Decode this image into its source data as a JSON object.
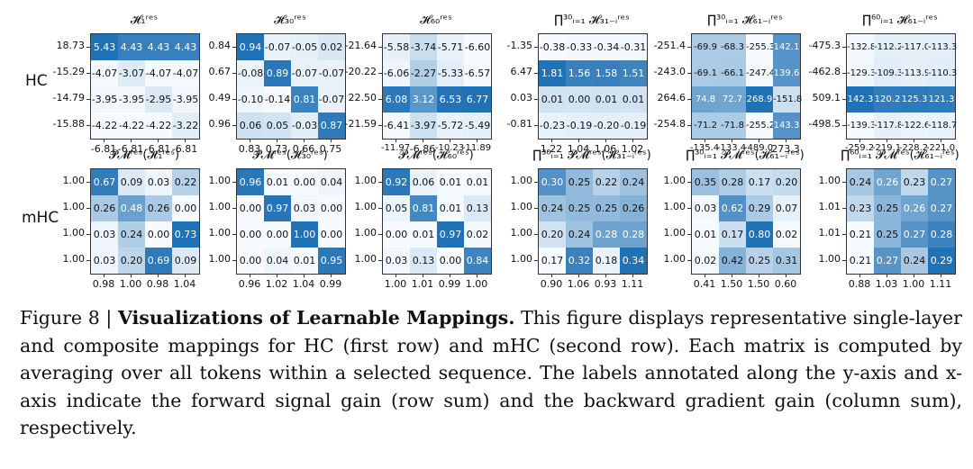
{
  "row_labels": [
    "HC",
    "mHC"
  ],
  "panels": [
    {
      "title": "𝓗₁ʳᵉˢ",
      "row_sums": [
        "18.73",
        "-15.29",
        "-14.79",
        "-15.88"
      ],
      "col_sums": [
        "-6.81",
        "-6.81",
        "-6.81",
        "-6.81"
      ],
      "values": [
        [
          5.43,
          4.43,
          4.43,
          4.43
        ],
        [
          -4.07,
          -3.07,
          -4.07,
          -4.07
        ],
        [
          -3.95,
          -3.95,
          -2.95,
          -3.95
        ],
        [
          -4.22,
          -4.22,
          -4.22,
          -3.22
        ]
      ]
    },
    {
      "title": "𝓗₃₀ʳᵉˢ",
      "row_sums": [
        "0.84",
        "0.67",
        "0.49",
        "0.96"
      ],
      "col_sums": [
        "0.83",
        "0.73",
        "0.66",
        "0.75"
      ],
      "values": [
        [
          0.94,
          -0.07,
          -0.05,
          0.02
        ],
        [
          -0.08,
          0.89,
          -0.07,
          -0.07
        ],
        [
          -0.1,
          -0.14,
          0.81,
          -0.07
        ],
        [
          0.06,
          0.05,
          -0.03,
          0.87
        ]
      ]
    },
    {
      "title": "𝓗₆₀ʳᵉˢ",
      "row_sums": [
        "-21.64",
        "-20.22",
        "22.50",
        "-21.59"
      ],
      "col_sums": [
        "-11.97",
        "-6.86",
        "-10.23",
        "-11.89"
      ],
      "values": [
        [
          -5.58,
          -3.74,
          -5.71,
          -6.6
        ],
        [
          -6.06,
          -2.27,
          -5.33,
          -6.57
        ],
        [
          6.08,
          3.12,
          6.53,
          6.77
        ],
        [
          -6.41,
          -3.97,
          -5.72,
          -5.49
        ]
      ]
    },
    {
      "title": "∏³⁰ᵢ₌₁ 𝓗₃₁₋ᵢʳᵉˢ",
      "row_sums": [
        "-1.35",
        "6.47",
        "0.03",
        "-0.81"
      ],
      "col_sums": [
        "1.22",
        "1.04",
        "1.06",
        "1.02"
      ],
      "values": [
        [
          -0.38,
          -0.33,
          -0.34,
          -0.31
        ],
        [
          1.81,
          1.56,
          1.58,
          1.51
        ],
        [
          0.01,
          -0.0,
          0.01,
          0.01
        ],
        [
          -0.23,
          -0.19,
          -0.2,
          -0.19
        ]
      ]
    },
    {
      "title": "∏³⁰ᵢ₌₁ 𝓗₆₁₋ᵢʳᵉˢ",
      "row_sums": [
        "-251.4",
        "-243.0",
        "264.6",
        "-254.8"
      ],
      "col_sums": [
        "-135.4",
        "-133.4",
        "-489.0",
        "273.3"
      ],
      "values": [
        [
          -69.9,
          -68.3,
          -255.3,
          142.1
        ],
        [
          -69.1,
          -66.1,
          -247.4,
          139.6
        ],
        [
          74.8,
          72.7,
          268.9,
          -151.8
        ],
        [
          -71.2,
          -71.8,
          -255.2,
          143.3
        ]
      ]
    },
    {
      "title": "∏⁶⁰ᵢ₌₁ 𝓗₆₁₋ᵢʳᵉˢ",
      "row_sums": [
        "-475.3",
        "-462.8",
        "509.1",
        "-498.5"
      ],
      "col_sums": [
        "-259.2",
        "-219.1",
        "-228.2",
        "-221.0"
      ],
      "values": [
        [
          -132.8,
          -112.2,
          -117.0,
          -113.3
        ],
        [
          -129.3,
          -109.3,
          -113.9,
          -110.3
        ],
        [
          142.3,
          120.2,
          125.3,
          121.3
        ],
        [
          -139.3,
          -117.8,
          -122.6,
          -118.7
        ]
      ]
    },
    {
      "title": "𝓟𝓜ʳᵉˢ(𝓗₁ʳᵉˢ)",
      "row_sums": [
        "1.00",
        "1.00",
        "1.00",
        "1.00"
      ],
      "col_sums": [
        "0.98",
        "1.00",
        "0.98",
        "1.04"
      ],
      "values": [
        [
          0.67,
          0.09,
          0.03,
          0.22
        ],
        [
          0.26,
          0.48,
          0.26,
          0.0
        ],
        [
          0.03,
          0.24,
          0.0,
          0.73
        ],
        [
          0.03,
          0.2,
          0.69,
          0.09
        ]
      ]
    },
    {
      "title": "𝓟𝓜ʳᵉˢ(𝓗₃₀ʳᵉˢ)",
      "row_sums": [
        "1.00",
        "1.00",
        "1.00",
        "1.00"
      ],
      "col_sums": [
        "0.96",
        "1.02",
        "1.04",
        "0.99"
      ],
      "values": [
        [
          0.96,
          0.01,
          0.0,
          0.04
        ],
        [
          0.0,
          0.97,
          0.03,
          0.0
        ],
        [
          0.0,
          0.0,
          1.0,
          0.0
        ],
        [
          0.0,
          0.04,
          0.01,
          0.95
        ]
      ]
    },
    {
      "title": "𝓟𝓜ʳᵉˢ(𝓗₆₀ʳᵉˢ)",
      "row_sums": [
        "1.00",
        "1.00",
        "1.00",
        "1.00"
      ],
      "col_sums": [
        "1.00",
        "1.01",
        "0.99",
        "1.00"
      ],
      "values": [
        [
          0.92,
          0.06,
          0.01,
          0.01
        ],
        [
          0.05,
          0.81,
          0.01,
          0.13
        ],
        [
          0.0,
          0.01,
          0.97,
          0.02
        ],
        [
          0.03,
          0.13,
          0.0,
          0.84
        ]
      ]
    },
    {
      "title": "∏³⁰ᵢ₌₁ 𝓟𝓜ʳᵉˢ(𝓗₃₁₋ᵢʳᵉˢ)",
      "row_sums": [
        "1.00",
        "1.00",
        "1.00",
        "1.00"
      ],
      "col_sums": [
        "0.90",
        "1.06",
        "0.93",
        "1.11"
      ],
      "values": [
        [
          0.3,
          0.25,
          0.22,
          0.24
        ],
        [
          0.24,
          0.25,
          0.25,
          0.26
        ],
        [
          0.2,
          0.24,
          0.28,
          0.28
        ],
        [
          0.17,
          0.32,
          0.18,
          0.34
        ]
      ]
    },
    {
      "title": "∏³⁰ᵢ₌₁ 𝓟𝓜ʳᵉˢ(𝓗₆₁₋ᵢʳᵉˢ)",
      "row_sums": [
        "1.00",
        "1.00",
        "1.00",
        "1.00"
      ],
      "col_sums": [
        "0.41",
        "1.50",
        "1.50",
        "0.60"
      ],
      "values": [
        [
          0.35,
          0.28,
          0.17,
          0.2
        ],
        [
          0.03,
          0.62,
          0.29,
          0.07
        ],
        [
          0.01,
          0.17,
          0.8,
          0.02
        ],
        [
          0.02,
          0.42,
          0.25,
          0.31
        ]
      ]
    },
    {
      "title": "∏⁶⁰ᵢ₌₁ 𝓟𝓜ʳᵉˢ(𝓗₆₁₋ᵢʳᵉˢ)",
      "row_sums": [
        "1.00",
        "1.01",
        "1.01",
        "1.00"
      ],
      "col_sums": [
        "0.88",
        "1.03",
        "1.00",
        "1.11"
      ],
      "values": [
        [
          0.24,
          0.26,
          0.23,
          0.27
        ],
        [
          0.23,
          0.25,
          0.26,
          0.27
        ],
        [
          0.21,
          0.25,
          0.27,
          0.28
        ],
        [
          0.21,
          0.27,
          0.24,
          0.29
        ]
      ]
    }
  ],
  "caption": {
    "label": "Figure 8 |",
    "title": "Visualizations of Learnable Mappings.",
    "body": "This figure displays representative single-layer and composite mappings for HC (first row) and mHC (second row). Each matrix is computed by averaging over all tokens within a selected sequence. The labels annotated along the y-axis and x-axis indicate the forward signal gain (row sum) and the backward gradient gain (column sum), respectively."
  }
}
